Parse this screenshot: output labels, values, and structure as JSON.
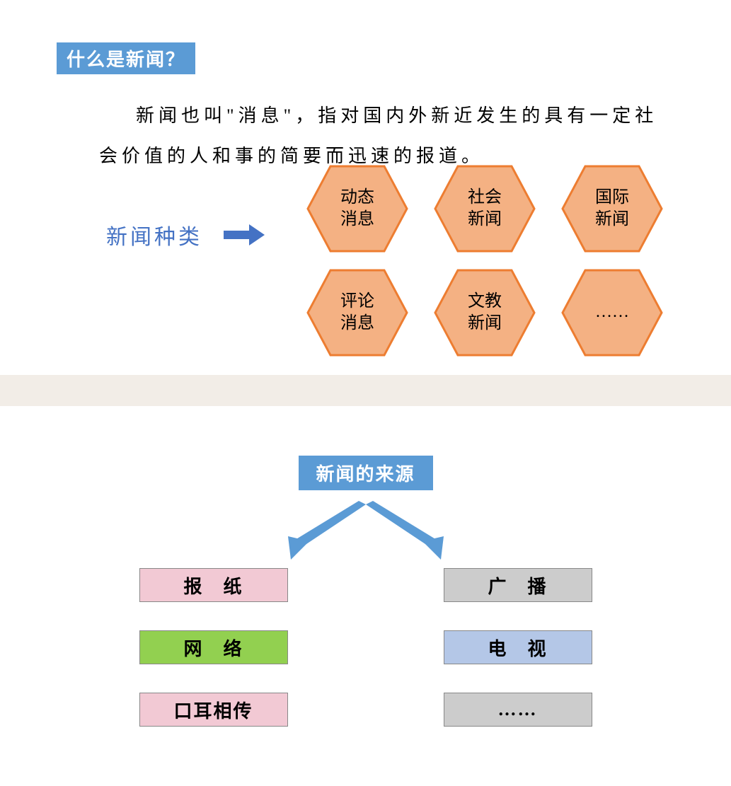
{
  "section1": {
    "title": "什么是新闻？",
    "definition": "新闻也叫\"消息\"，指对国内外新近发生的具有一定社会价值的人和事的简要而迅速的报道。",
    "types_label": "新闻种类",
    "hexagons": {
      "fill": "#f4b183",
      "stroke": "#ed7d31",
      "stroke_width": 3,
      "items": [
        "动态\n消息",
        "社会\n新闻",
        "国际\n新闻",
        "评论\n消息",
        "文教\n新闻",
        "……"
      ]
    },
    "arrow_color": "#4472c4",
    "label_color": "#4472c4"
  },
  "divider_color": "#f2ede7",
  "section2": {
    "title": "新闻的来源",
    "title_bg": "#5b9bd5",
    "arrow_color": "#5b9bd5",
    "sources": [
      {
        "label": "报　纸",
        "bg": "#f2c9d4",
        "spaced": true
      },
      {
        "label": "广　播",
        "bg": "#cccccc",
        "spaced": true
      },
      {
        "label": "网　络",
        "bg": "#92d050",
        "spaced": true
      },
      {
        "label": "电　视",
        "bg": "#b4c7e7",
        "spaced": true
      },
      {
        "label": "口耳相传",
        "bg": "#f2c9d4",
        "spaced": false
      },
      {
        "label": "……",
        "bg": "#cccccc",
        "spaced": false
      }
    ]
  }
}
